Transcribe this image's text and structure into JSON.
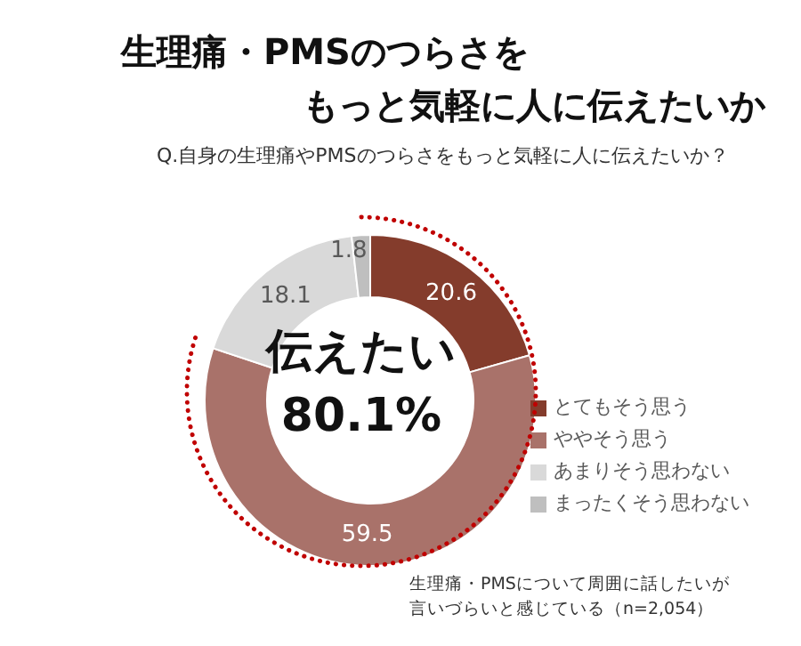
{
  "chart_data": {
    "type": "donut",
    "title": "生理痛・PMSのつらさを",
    "subtitle": "もっと気軽に人に伝えたいか",
    "categories": [
      "とてもそう思う",
      "ややそう思う",
      "あまりそう思わない",
      "まったくそう思わない"
    ],
    "values": [
      20.6,
      59.5,
      18.1,
      1.8
    ],
    "colors": [
      "#843c2c",
      "#a9726a",
      "#d9d9d9",
      "#bfbfbf"
    ],
    "data_labels": true,
    "legend": "right",
    "annotations": [
      "Q.自身の生理痛やPMSのつらさをもっと気軽に人に伝えたいか？",
      "伝えたい",
      "80.1%",
      "生理痛・PMSについて周囲に話したいが",
      "言いづらいと感じている（n=2,054）"
    ]
  }
}
